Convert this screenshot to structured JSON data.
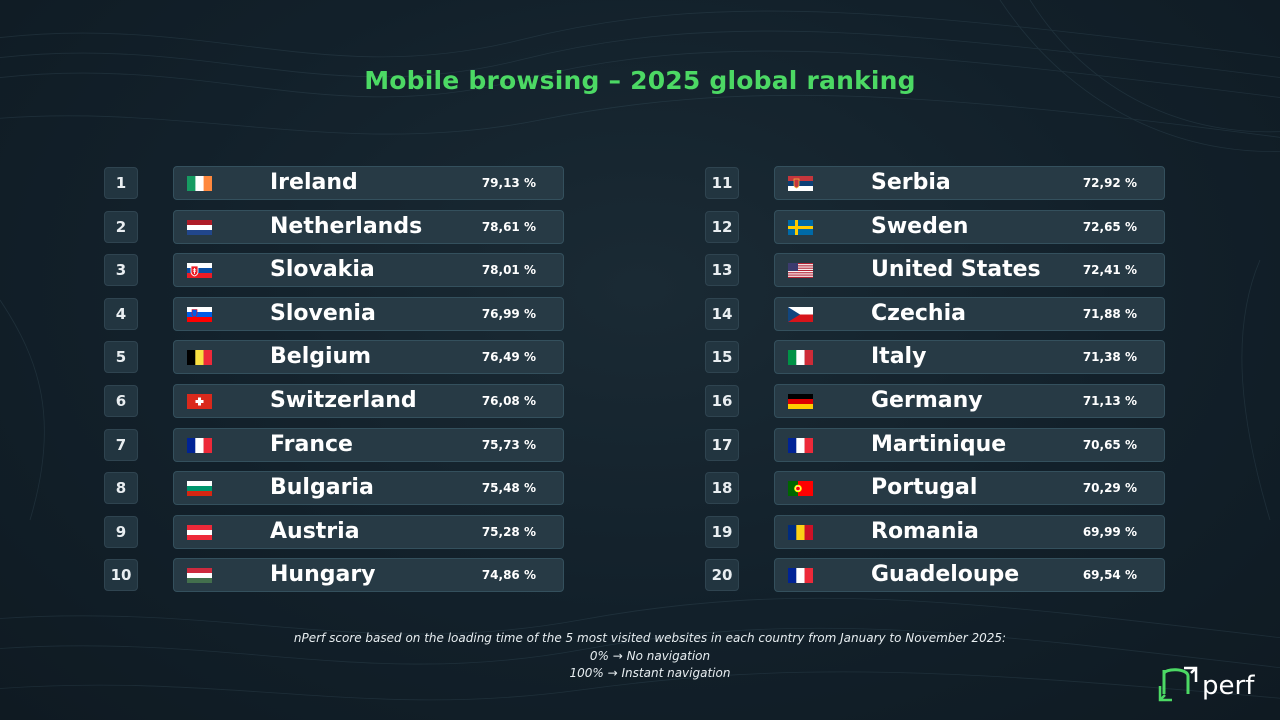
{
  "title": "Mobile browsing – 2025 global ranking",
  "left_rows": [
    {
      "rank": "1",
      "country": "Ireland",
      "score": "79,13 %",
      "flag": "ireland"
    },
    {
      "rank": "2",
      "country": "Netherlands",
      "score": "78,61 %",
      "flag": "netherlands"
    },
    {
      "rank": "3",
      "country": "Slovakia",
      "score": "78,01 %",
      "flag": "slovakia"
    },
    {
      "rank": "4",
      "country": "Slovenia",
      "score": "76,99 %",
      "flag": "slovenia"
    },
    {
      "rank": "5",
      "country": "Belgium",
      "score": "76,49 %",
      "flag": "belgium"
    },
    {
      "rank": "6",
      "country": "Switzerland",
      "score": "76,08 %",
      "flag": "switzerland"
    },
    {
      "rank": "7",
      "country": "France",
      "score": "75,73 %",
      "flag": "france"
    },
    {
      "rank": "8",
      "country": "Bulgaria",
      "score": "75,48 %",
      "flag": "bulgaria"
    },
    {
      "rank": "9",
      "country": "Austria",
      "score": "75,28 %",
      "flag": "austria"
    },
    {
      "rank": "10",
      "country": "Hungary",
      "score": "74,86 %",
      "flag": "hungary"
    }
  ],
  "right_rows": [
    {
      "rank": "11",
      "country": "Serbia",
      "score": "72,92 %",
      "flag": "serbia"
    },
    {
      "rank": "12",
      "country": "Sweden",
      "score": "72,65 %",
      "flag": "sweden"
    },
    {
      "rank": "13",
      "country": "United States",
      "score": "72,41 %",
      "flag": "united-states"
    },
    {
      "rank": "14",
      "country": "Czechia",
      "score": "71,88 %",
      "flag": "czechia"
    },
    {
      "rank": "15",
      "country": "Italy",
      "score": "71,38 %",
      "flag": "italy"
    },
    {
      "rank": "16",
      "country": "Germany",
      "score": "71,13 %",
      "flag": "germany"
    },
    {
      "rank": "17",
      "country": "Martinique",
      "score": "70,65 %",
      "flag": "france"
    },
    {
      "rank": "18",
      "country": "Portugal",
      "score": "70,29 %",
      "flag": "portugal"
    },
    {
      "rank": "19",
      "country": "Romania",
      "score": "69,99 %",
      "flag": "romania"
    },
    {
      "rank": "20",
      "country": "Guadeloupe",
      "score": "69,54 %",
      "flag": "france"
    }
  ],
  "footnote": {
    "line1": "nPerf score based on the loading time of the 5 most visited websites in each country from January to November 2025:",
    "line2": "0% → No navigation",
    "line3": "100% → Instant navigation"
  },
  "logo": {
    "text": "nperf",
    "color": "#4cd964"
  },
  "colors": {
    "title": "#4cd964",
    "background": "#12202a",
    "bar": "#273a45"
  }
}
